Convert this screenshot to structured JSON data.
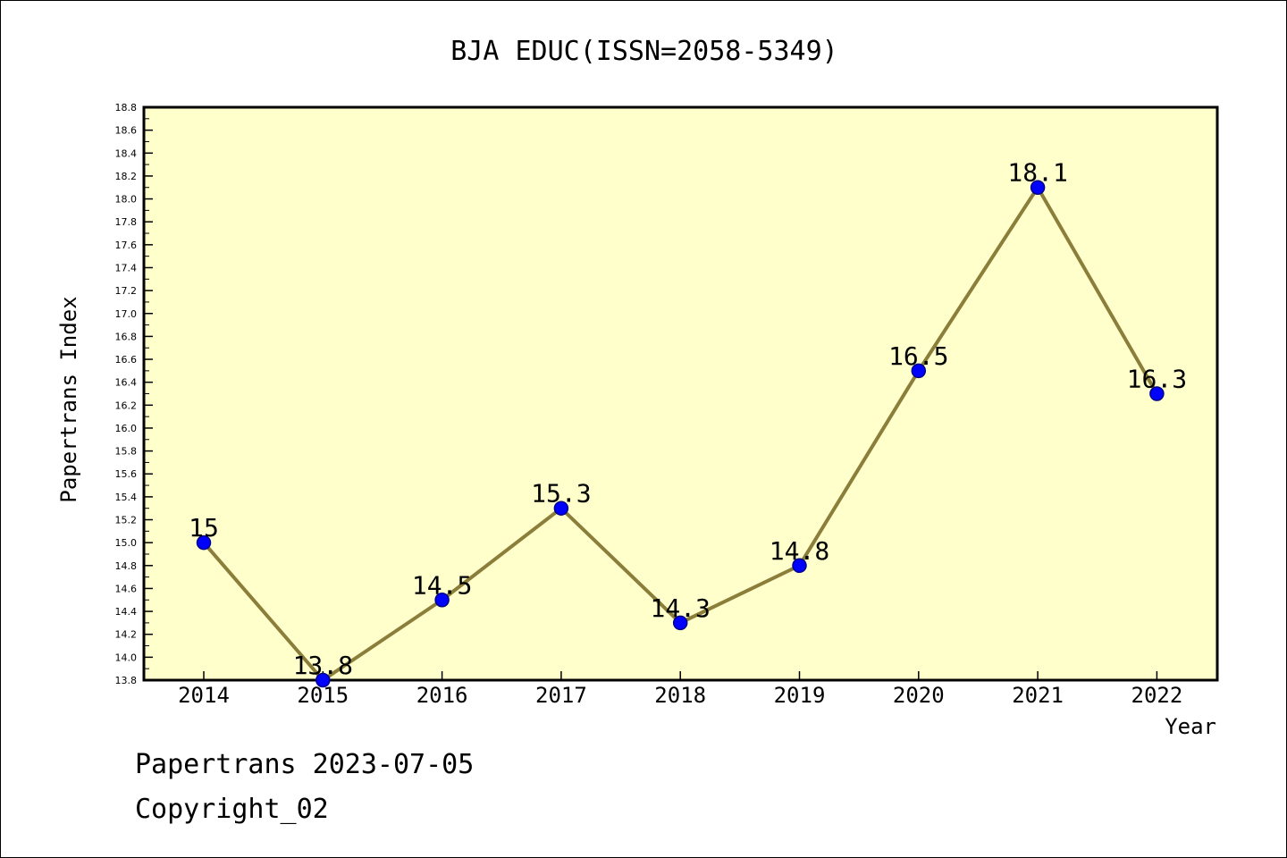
{
  "chart_data": {
    "type": "line",
    "title": "BJA EDUC(ISSN=2058-5349)",
    "xlabel": "Year",
    "ylabel": "Papertrans Index",
    "categories": [
      "2014",
      "2015",
      "2016",
      "2017",
      "2018",
      "2019",
      "2020",
      "2021",
      "2022"
    ],
    "values": [
      15,
      13.8,
      14.5,
      15.3,
      14.3,
      14.8,
      16.5,
      18.1,
      16.3
    ],
    "data_labels": [
      "15",
      "13.8",
      "14.5",
      "15.3",
      "14.3",
      "14.8",
      "16.5",
      "18.1",
      "16.3"
    ],
    "ylim": [
      13.8,
      18.8
    ],
    "ytick_step": 0.2,
    "ytick_labels": [
      "13.8",
      "14.0",
      "14.2",
      "14.4",
      "14.6",
      "14.8",
      "15.0",
      "15.2",
      "15.4",
      "15.6",
      "15.8",
      "16.0",
      "16.2",
      "16.4",
      "16.6",
      "16.8",
      "17.0",
      "17.2",
      "17.4",
      "17.6",
      "17.8",
      "18.0",
      "18.2",
      "18.4",
      "18.6",
      "18.8"
    ],
    "grid": false,
    "colors": {
      "plot_background": "#ffffcc",
      "line": "#8b7d3a",
      "marker": "#0000ff",
      "marker_edge": "#00008b"
    }
  },
  "footer": {
    "line1": "Papertrans 2023-07-05",
    "line2": "Copyright_02"
  }
}
